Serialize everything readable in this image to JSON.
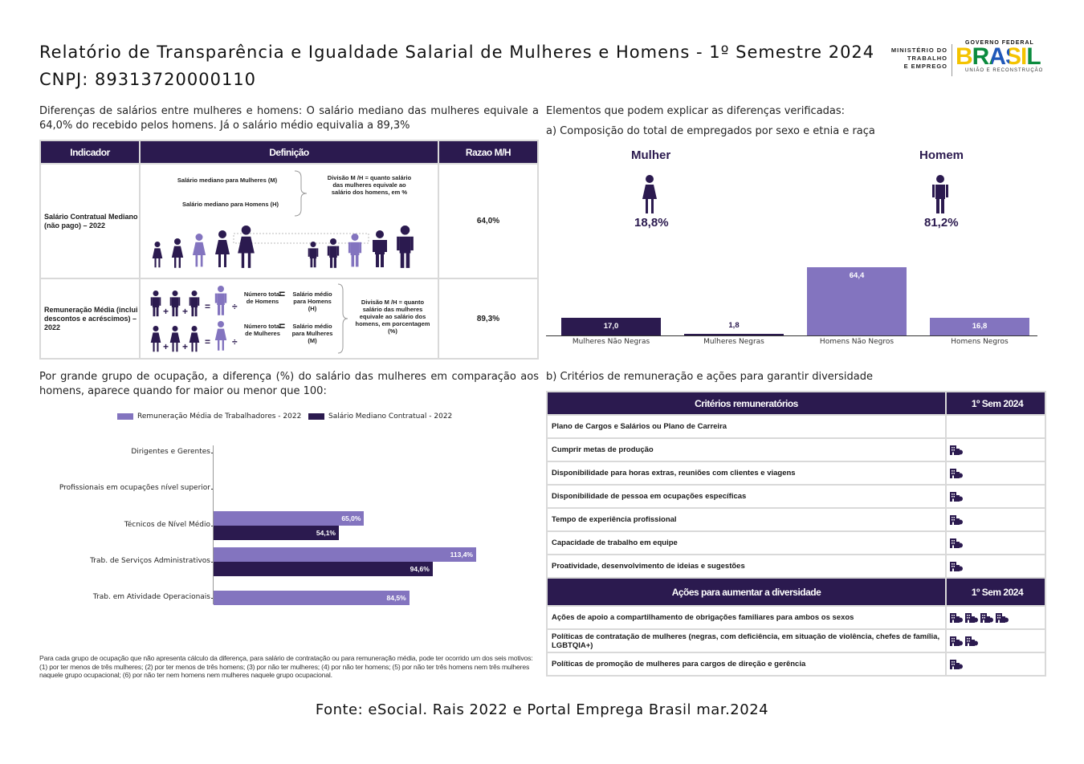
{
  "header": {
    "title_line1": "Relatório de Transparência e Igualdade Salarial de Mulheres e Homens - 1º Semestre 2024",
    "title_line2": "CNPJ: 89313720000110",
    "logo_mte": [
      "MINISTÉRIO DO",
      "TRABALHO",
      "E EMPREGO"
    ],
    "logo_gov_top": "GOVERNO FEDERAL",
    "logo_gov_main": "BRASIL",
    "logo_gov_bottom": "UNIÃO E RECONSTRUÇÃO"
  },
  "diff": {
    "intro": "Diferenças de salários entre mulheres e homens: O salário mediano das mulheres equivale a 64,0% do recebido pelos homens. Já o salário médio equivalia a 89,3%",
    "headers": {
      "indicador": "Indicador",
      "definicao": "Definição",
      "razao": "Razao M/H"
    },
    "rows": [
      {
        "indicador": "Salário Contratual Mediano (não pago) – 2022",
        "razao": "64,0%",
        "def_m": "Salário mediano para Mulheres (M)",
        "def_h": "Salário mediano para Homens (H)",
        "def_div": "Divisão M /H = quanto salário das mulheres equivale ao salário dos homens, em %"
      },
      {
        "indicador": "Remuneração Média (inclui descontos e acréscimos) – 2022",
        "razao": "89,3%",
        "num_h": "Número total de Homens",
        "sal_h": "Salário médio para Homens (H)",
        "num_m": "Número total de Mulheres",
        "sal_m": "Salário médio para Mulheres (M)",
        "def_div": "Divisão M /H = quanto salário das mulheres equivale ao salário dos homens, em porcentagem (%)"
      }
    ]
  },
  "elements": {
    "intro": "Elementos que podem explicar as diferenças verificadas:",
    "subtitle_a": "a) Composição do total de empregados por sexo e etnia e raça",
    "mulher_label": "Mulher",
    "mulher_pct": "18,8%",
    "homem_label": "Homem",
    "homem_pct": "81,2%"
  },
  "colors": {
    "dark": "#2b1a4f",
    "light": "#8374bf"
  },
  "chart_data": [
    {
      "type": "bar",
      "categories": [
        "Mulheres Não Negras",
        "Mulheres Negras",
        "Homens Não Negros",
        "Homens Negros"
      ],
      "values": [
        17.0,
        1.8,
        64.4,
        16.8
      ],
      "labels": [
        "17,0",
        "1,8",
        "64,4",
        "16,8"
      ],
      "colors": [
        "#2b1a4f",
        "#2b1a4f",
        "#8374bf",
        "#8374bf"
      ],
      "ylim": [
        0,
        70
      ]
    },
    {
      "type": "bar",
      "orientation": "horizontal",
      "categories": [
        "Dirigentes e Gerentes",
        "Profissionais em ocupações nível superior",
        "Técnicos de Nível Médio",
        "Trab. de Serviços Administrativos",
        "Trab. em Atividade Operacionais"
      ],
      "series": [
        {
          "name": "Remuneração Média de Trabalhadores - 2022",
          "values": [
            null,
            null,
            65.0,
            113.4,
            84.5
          ],
          "labels": [
            "",
            "",
            "65,0%",
            "113,4%",
            "84,5%"
          ],
          "color": "#8374bf"
        },
        {
          "name": "Salário Mediano Contratual - 2022",
          "values": [
            null,
            null,
            54.1,
            94.6,
            null
          ],
          "labels": [
            "",
            "",
            "54,1%",
            "94,6%",
            ""
          ],
          "color": "#2b1a4f"
        }
      ],
      "xlim": [
        0,
        120
      ]
    }
  ],
  "occupation": {
    "intro": "Por grande grupo de ocupação, a diferença (%) do salário das mulheres em comparação aos homens, aparece quando for maior ou menor que 100:",
    "footnote": "Para cada grupo de ocupação que não apresenta cálculo da diferença, para salário de contratação ou para remuneração média, pode ter ocorrido um dos seis motivos:(1) por ter menos de três mulheres; (2) por ter menos de três homens; (3) por não ter mulheres; (4) por não ter homens; (5) por não ter três homens nem três mulheres naquele grupo ocupacional; (6) por não ter nem homens nem mulheres naquele grupo ocupacional."
  },
  "criteria": {
    "subtitle_b": "b) Critérios de remuneração e ações para garantir diversidade",
    "header": "Critérios remuneratórios",
    "col": "1º Sem 2024",
    "rows": [
      {
        "label": "Plano de Cargos e Salários ou Plano de Carreira",
        "icons": 0
      },
      {
        "label": "Cumprir metas de produção",
        "icons": 1
      },
      {
        "label": "Disponibilidade para horas extras, reuniões com clientes e viagens",
        "icons": 1
      },
      {
        "label": "Disponibilidade de pessoa em ocupações específicas",
        "icons": 1
      },
      {
        "label": "Tempo de experiência profissional",
        "icons": 1
      },
      {
        "label": "Capacidade de trabalho em equipe",
        "icons": 1
      },
      {
        "label": "Proatividade, desenvolvimento de ideias e sugestões",
        "icons": 1
      }
    ],
    "actions_header": "Ações para aumentar a diversidade",
    "actions_col": "1º Sem 2024",
    "actions": [
      {
        "label": "Ações de apoio a compartilhamento de obrigações familiares para ambos os sexos",
        "icons": 4
      },
      {
        "label": "Políticas de contratação de mulheres (negras, com deficiência, em situação de violência, chefes de família, LGBTQIA+)",
        "icons": 2
      },
      {
        "label": "Políticas de promoção de mulheres para cargos de direção e gerência",
        "icons": 1
      }
    ]
  },
  "source": "Fonte: eSocial. Rais 2022 e Portal Emprega Brasil mar.2024"
}
